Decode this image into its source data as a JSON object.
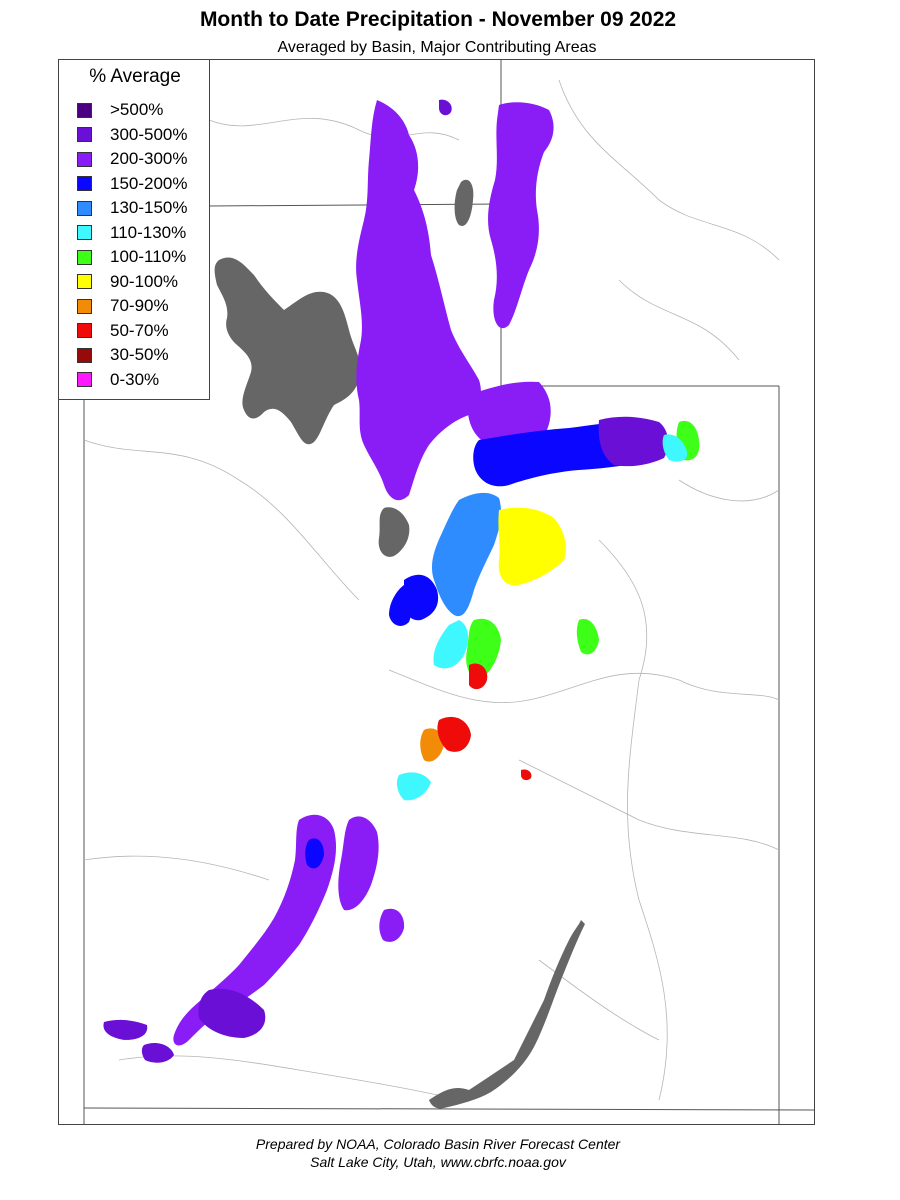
{
  "title": "Month to Date Precipitation - November 09 2022",
  "subtitle": "Averaged by Basin, Major Contributing Areas",
  "legend": {
    "title": "% Average",
    "items": [
      {
        "label": ">500%",
        "color": "#4b0082"
      },
      {
        "label": "300-500%",
        "color": "#6a0fd6"
      },
      {
        "label": "200-300%",
        "color": "#8a1cf6"
      },
      {
        "label": "150-200%",
        "color": "#0a06ff"
      },
      {
        "label": "130-150%",
        "color": "#2e8cff"
      },
      {
        "label": "110-130%",
        "color": "#3ff8ff"
      },
      {
        "label": "100-110%",
        "color": "#3dff17"
      },
      {
        "label": "90-100%",
        "color": "#ffff00"
      },
      {
        "label": "70-90%",
        "color": "#f28c08"
      },
      {
        "label": "50-70%",
        "color": "#f00b0b"
      },
      {
        "label": "30-50%",
        "color": "#970a0a"
      },
      {
        "label": "0-30%",
        "color": "#ff19ff"
      }
    ]
  },
  "lake_color": "#666666",
  "footer": {
    "line1": "Prepared by NOAA, Colorado Basin River Forecast Center",
    "line2": "Salt Lake City, Utah, www.cbrfc.noaa.gov"
  }
}
